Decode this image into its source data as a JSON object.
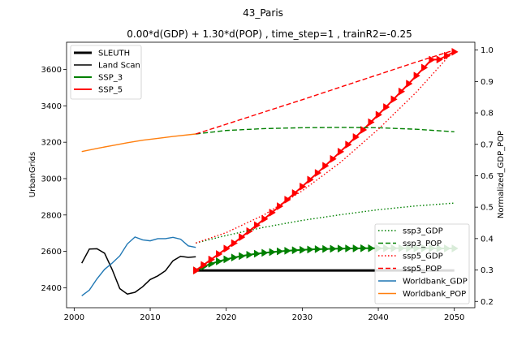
{
  "chart_data": {
    "type": "line",
    "title": "43_Paris",
    "subtitle": "0.00*d(GDP) + 1.30*d(POP) , time_step=1 , trainR2=-0.25",
    "xlabel": "",
    "ylabel": "UrbanGrids",
    "ylabel_right": "Normalized_GDP_POP",
    "xlim": [
      1999,
      2052.7
    ],
    "ylim": [
      2290,
      3750
    ],
    "ylim_right": [
      0.18,
      1.025
    ],
    "xticks": [
      "2000",
      "2010",
      "2020",
      "2030",
      "2040",
      "2050"
    ],
    "yticks": [
      "2400",
      "2600",
      "2800",
      "3000",
      "3200",
      "3400",
      "3600"
    ],
    "yticks_right": [
      "0.2",
      "0.3",
      "0.4",
      "0.5",
      "0.6",
      "0.7",
      "0.8",
      "0.9",
      "1.0"
    ],
    "grid": false,
    "legend_left": {
      "placement": "upper-left",
      "entries": [
        {
          "name": "SLEUTH",
          "color": "#000000",
          "style": "solid-thick"
        },
        {
          "name": "Land Scan",
          "color": "#000000",
          "style": "solid"
        },
        {
          "name": "SSP_3",
          "color": "#008000",
          "style": "solid"
        },
        {
          "name": "SSP_5",
          "color": "#ff0000",
          "style": "solid"
        }
      ]
    },
    "legend_right": {
      "placement": "lower-right",
      "entries": [
        {
          "name": "ssp3_GDP",
          "color": "#008000",
          "style": "dotted"
        },
        {
          "name": "ssp3_POP",
          "color": "#008000",
          "style": "dashed"
        },
        {
          "name": "ssp5_GDP",
          "color": "#ff0000",
          "style": "dotted"
        },
        {
          "name": "ssp5_POP",
          "color": "#ff0000",
          "style": "dashed"
        },
        {
          "name": "Worldbank_GDP",
          "color": "#1f77b4",
          "style": "solid"
        },
        {
          "name": "Worldbank_POP",
          "color": "#ff7f0e",
          "style": "solid"
        }
      ]
    },
    "series_left": [
      {
        "name": "SLEUTH",
        "color": "#000000",
        "width": 3,
        "x": [
          2016,
          2050
        ],
        "y": [
          2495,
          2495
        ]
      },
      {
        "name": "Land Scan",
        "color": "#000000",
        "width": 1.5,
        "x": [
          2001,
          2002,
          2003,
          2004,
          2005,
          2006,
          2007,
          2008,
          2009,
          2010,
          2011,
          2012,
          2013,
          2014,
          2015,
          2016
        ],
        "y": [
          2535,
          2613,
          2614,
          2590,
          2500,
          2395,
          2365,
          2375,
          2405,
          2445,
          2465,
          2493,
          2548,
          2573,
          2567,
          2570
        ]
      },
      {
        "name": "SSP_3",
        "color": "#008000",
        "width": 2,
        "marker": "triangle-right",
        "x": [
          2016,
          2017,
          2018,
          2019,
          2020,
          2021,
          2022,
          2023,
          2024,
          2025,
          2026,
          2027,
          2028,
          2029,
          2030,
          2031,
          2032,
          2033,
          2034,
          2035,
          2036,
          2037,
          2038,
          2039,
          2040,
          2041,
          2042,
          2043,
          2044,
          2045,
          2046,
          2047,
          2048,
          2049,
          2050
        ],
        "y": [
          2495,
          2516,
          2532,
          2545,
          2556,
          2566,
          2574,
          2581,
          2587,
          2592,
          2596,
          2600,
          2603,
          2606,
          2608,
          2610,
          2612,
          2613,
          2614,
          2615,
          2616,
          2616,
          2617,
          2617,
          2617,
          2617,
          2617,
          2617,
          2617,
          2617,
          2617,
          2617,
          2616,
          2616,
          2616
        ]
      },
      {
        "name": "SSP_5",
        "color": "#ff0000",
        "width": 2,
        "marker": "triangle-right",
        "x": [
          2016,
          2017,
          2018,
          2019,
          2020,
          2021,
          2022,
          2023,
          2024,
          2025,
          2026,
          2027,
          2028,
          2029,
          2030,
          2031,
          2032,
          2033,
          2034,
          2035,
          2036,
          2037,
          2038,
          2039,
          2040,
          2041,
          2042,
          2043,
          2044,
          2045,
          2046,
          2047,
          2048,
          2049,
          2050
        ],
        "y": [
          2495,
          2525,
          2555,
          2585,
          2615,
          2645,
          2678,
          2711,
          2744,
          2778,
          2813,
          2848,
          2884,
          2920,
          2956,
          2994,
          3031,
          3070,
          3108,
          3148,
          3187,
          3228,
          3268,
          3310,
          3351,
          3393,
          3436,
          3479,
          3522,
          3566,
          3610,
          3654,
          3655,
          3676,
          3697
        ]
      }
    ],
    "series_right": [
      {
        "name": "ssp3_GDP",
        "color": "#008000",
        "style": "dotted",
        "x": [
          2016,
          2020,
          2025,
          2030,
          2035,
          2040,
          2045,
          2050
        ],
        "y": [
          0.386,
          0.41,
          0.436,
          0.458,
          0.476,
          0.492,
          0.504,
          0.513
        ]
      },
      {
        "name": "ssp3_POP",
        "color": "#008000",
        "style": "dashed",
        "x": [
          2016,
          2020,
          2025,
          2030,
          2035,
          2040,
          2045,
          2050
        ],
        "y": [
          0.733,
          0.744,
          0.75,
          0.753,
          0.754,
          0.753,
          0.748,
          0.74
        ]
      },
      {
        "name": "ssp5_GDP",
        "color": "#ff0000",
        "style": "dotted",
        "x": [
          2016,
          2020,
          2025,
          2030,
          2035,
          2040,
          2045,
          2050
        ],
        "y": [
          0.386,
          0.419,
          0.476,
          0.552,
          0.642,
          0.748,
          0.866,
          1.0
        ]
      },
      {
        "name": "ssp5_POP",
        "color": "#ff0000",
        "style": "dashed",
        "x": [
          2016,
          2020,
          2025,
          2030,
          2035,
          2040,
          2045,
          2050
        ],
        "y": [
          0.733,
          0.764,
          0.803,
          0.842,
          0.882,
          0.922,
          0.962,
          1.0
        ]
      },
      {
        "name": "Worldbank_GDP",
        "color": "#1f77b4",
        "style": "solid",
        "x": [
          2001,
          2002,
          2003,
          2004,
          2005,
          2006,
          2007,
          2008,
          2009,
          2010,
          2011,
          2012,
          2013,
          2014,
          2015,
          2016
        ],
        "y": [
          0.218,
          0.236,
          0.272,
          0.302,
          0.322,
          0.345,
          0.383,
          0.405,
          0.396,
          0.393,
          0.4,
          0.4,
          0.404,
          0.398,
          0.377,
          0.372
        ]
      },
      {
        "name": "Worldbank_POP",
        "color": "#ff7f0e",
        "style": "solid",
        "x": [
          2001,
          2003,
          2005,
          2007,
          2009,
          2011,
          2013,
          2016
        ],
        "y": [
          0.677,
          0.687,
          0.696,
          0.705,
          0.713,
          0.719,
          0.725,
          0.733
        ]
      }
    ]
  }
}
